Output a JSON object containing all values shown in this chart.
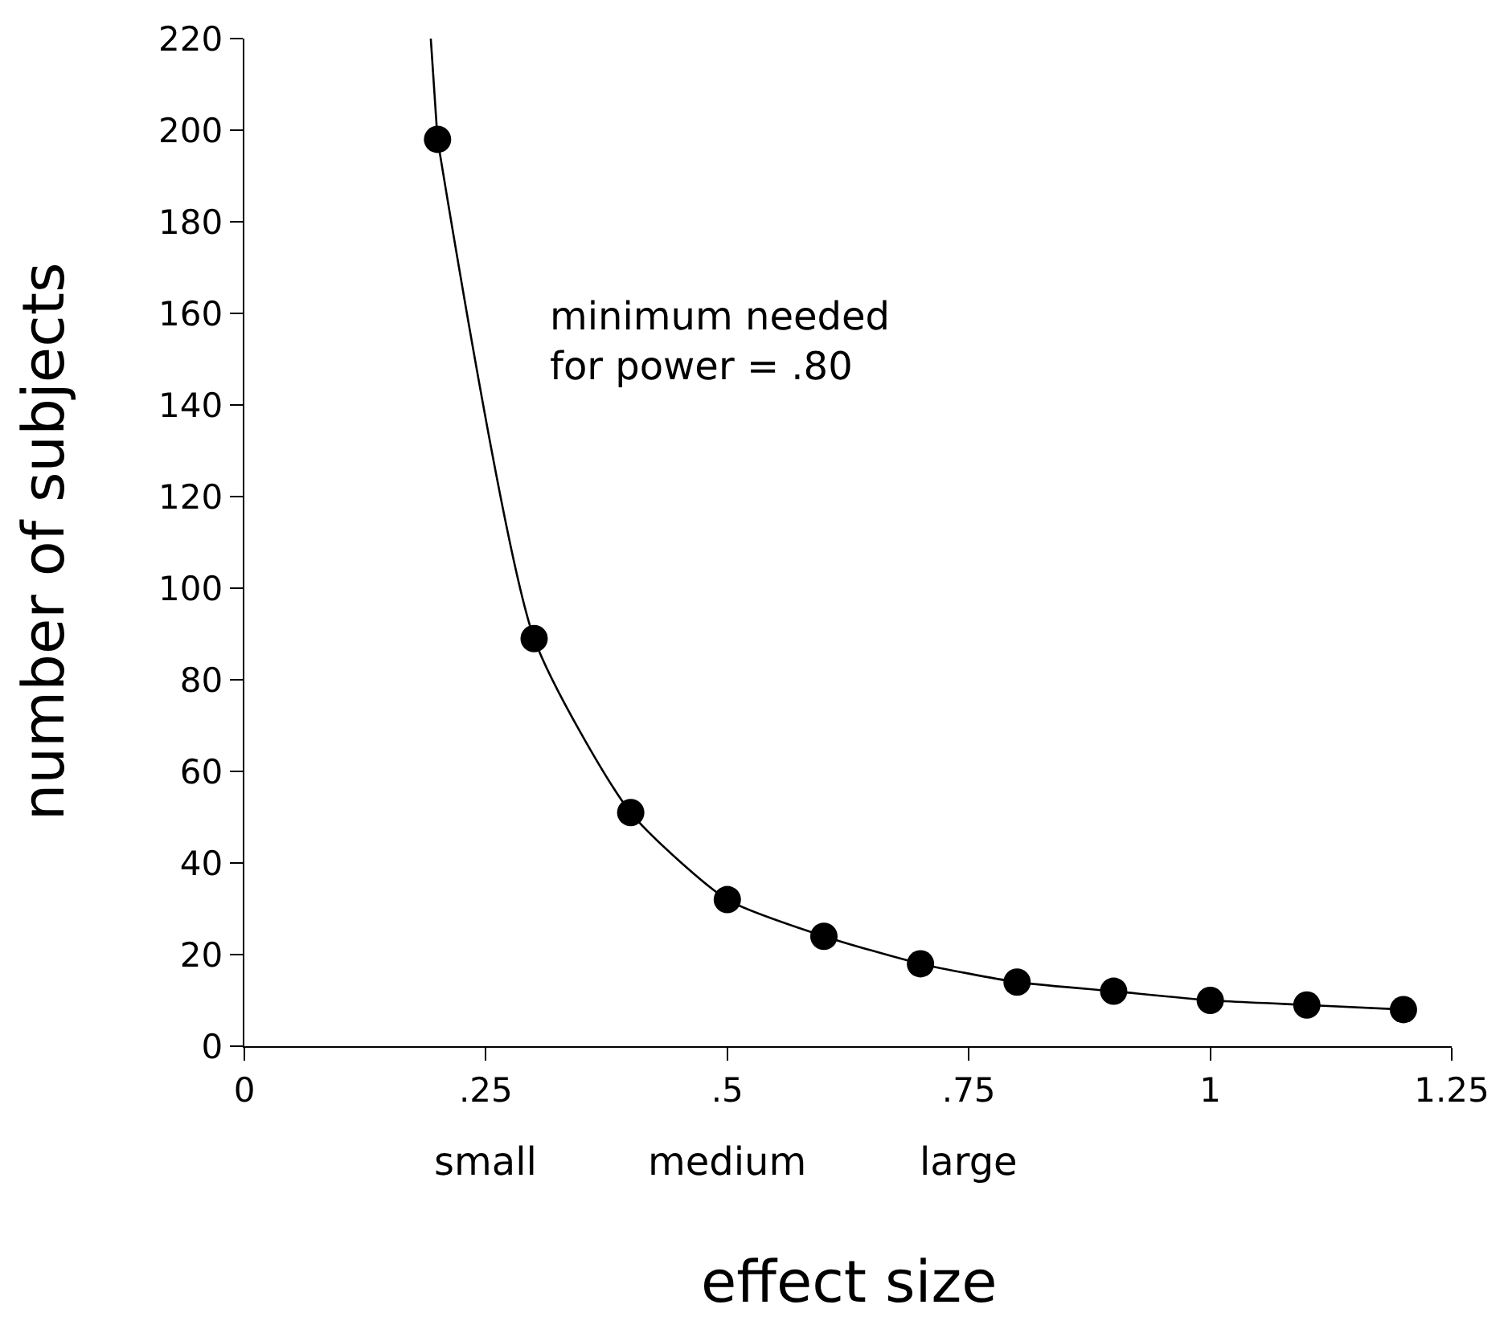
{
  "chart_data": {
    "type": "line",
    "xlabel": "effect size",
    "ylabel": "number of subjects",
    "xlim": [
      0,
      1.25
    ],
    "ylim": [
      0,
      220
    ],
    "xticks": [
      0,
      {
        "value": 0.25,
        "label": ".25"
      },
      {
        "value": 0.5,
        "label": ".5"
      },
      {
        "value": 0.75,
        "label": ".75"
      },
      1,
      1.25
    ],
    "yticks": [
      0,
      20,
      40,
      60,
      80,
      100,
      120,
      140,
      160,
      180,
      200,
      220
    ],
    "marker": "circle",
    "line_style": "solid",
    "series": [
      {
        "color": "#000000",
        "x": [
          0.2,
          0.3,
          0.4,
          0.5,
          0.6,
          0.7,
          0.8,
          0.9,
          1.0,
          1.1,
          1.2
        ],
        "values": [
          198,
          89,
          51,
          32,
          24,
          18,
          14,
          12,
          10,
          9,
          8
        ]
      },
      {
        "color": "#000000",
        "marker": "none",
        "x": [
          0.193,
          0.2
        ],
        "values": [
          220,
          198
        ]
      }
    ],
    "annotations": [
      "minimum needed\nfor power = .80",
      "small",
      "medium",
      "large"
    ]
  }
}
